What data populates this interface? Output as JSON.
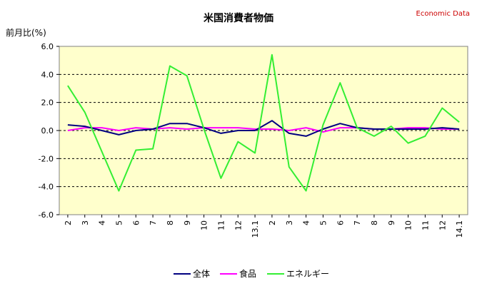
{
  "chart_data": {
    "type": "line",
    "title": "米国消費者物価",
    "source_label": "Economic Data",
    "ylabel": "前月比(%)",
    "ylim": [
      -6,
      6
    ],
    "yticks": [
      "6.0",
      "4.0",
      "2.0",
      "0.0",
      "-2.0",
      "-4.0",
      "-6.0"
    ],
    "ytick_values": [
      6,
      4,
      2,
      0,
      -2,
      -4,
      -6
    ],
    "grid": "horizontal dashed",
    "legend_position": "bottom",
    "categories": [
      "2",
      "3",
      "4",
      "5",
      "6",
      "7",
      "8",
      "9",
      "10",
      "11",
      "12",
      "13.1",
      "2",
      "3",
      "4",
      "5",
      "6",
      "7",
      "8",
      "9",
      "10",
      "11",
      "12",
      "14.1"
    ],
    "series": [
      {
        "name": "全体",
        "color": "#000080",
        "values": [
          0.4,
          0.3,
          0.0,
          -0.3,
          0.0,
          0.1,
          0.5,
          0.5,
          0.2,
          -0.2,
          0.0,
          0.0,
          0.7,
          -0.2,
          -0.4,
          0.1,
          0.5,
          0.2,
          0.1,
          0.1,
          0.1,
          0.1,
          0.2,
          0.1
        ]
      },
      {
        "name": "食品",
        "color": "#ff00ff",
        "values": [
          0.0,
          0.2,
          0.2,
          0.0,
          0.2,
          0.1,
          0.2,
          0.1,
          0.2,
          0.2,
          0.2,
          0.1,
          0.1,
          0.0,
          0.2,
          -0.1,
          0.2,
          0.2,
          0.1,
          0.1,
          0.2,
          0.2,
          0.1,
          0.1
        ]
      },
      {
        "name": "エネルギー",
        "color": "#33ee33",
        "values": [
          3.2,
          1.3,
          -1.5,
          -4.3,
          -1.4,
          -1.3,
          4.6,
          3.9,
          0.1,
          -3.4,
          -0.8,
          -1.6,
          5.4,
          -2.6,
          -4.3,
          0.4,
          3.4,
          0.2,
          -0.4,
          0.3,
          -0.9,
          -0.4,
          1.6,
          0.6
        ]
      }
    ]
  }
}
